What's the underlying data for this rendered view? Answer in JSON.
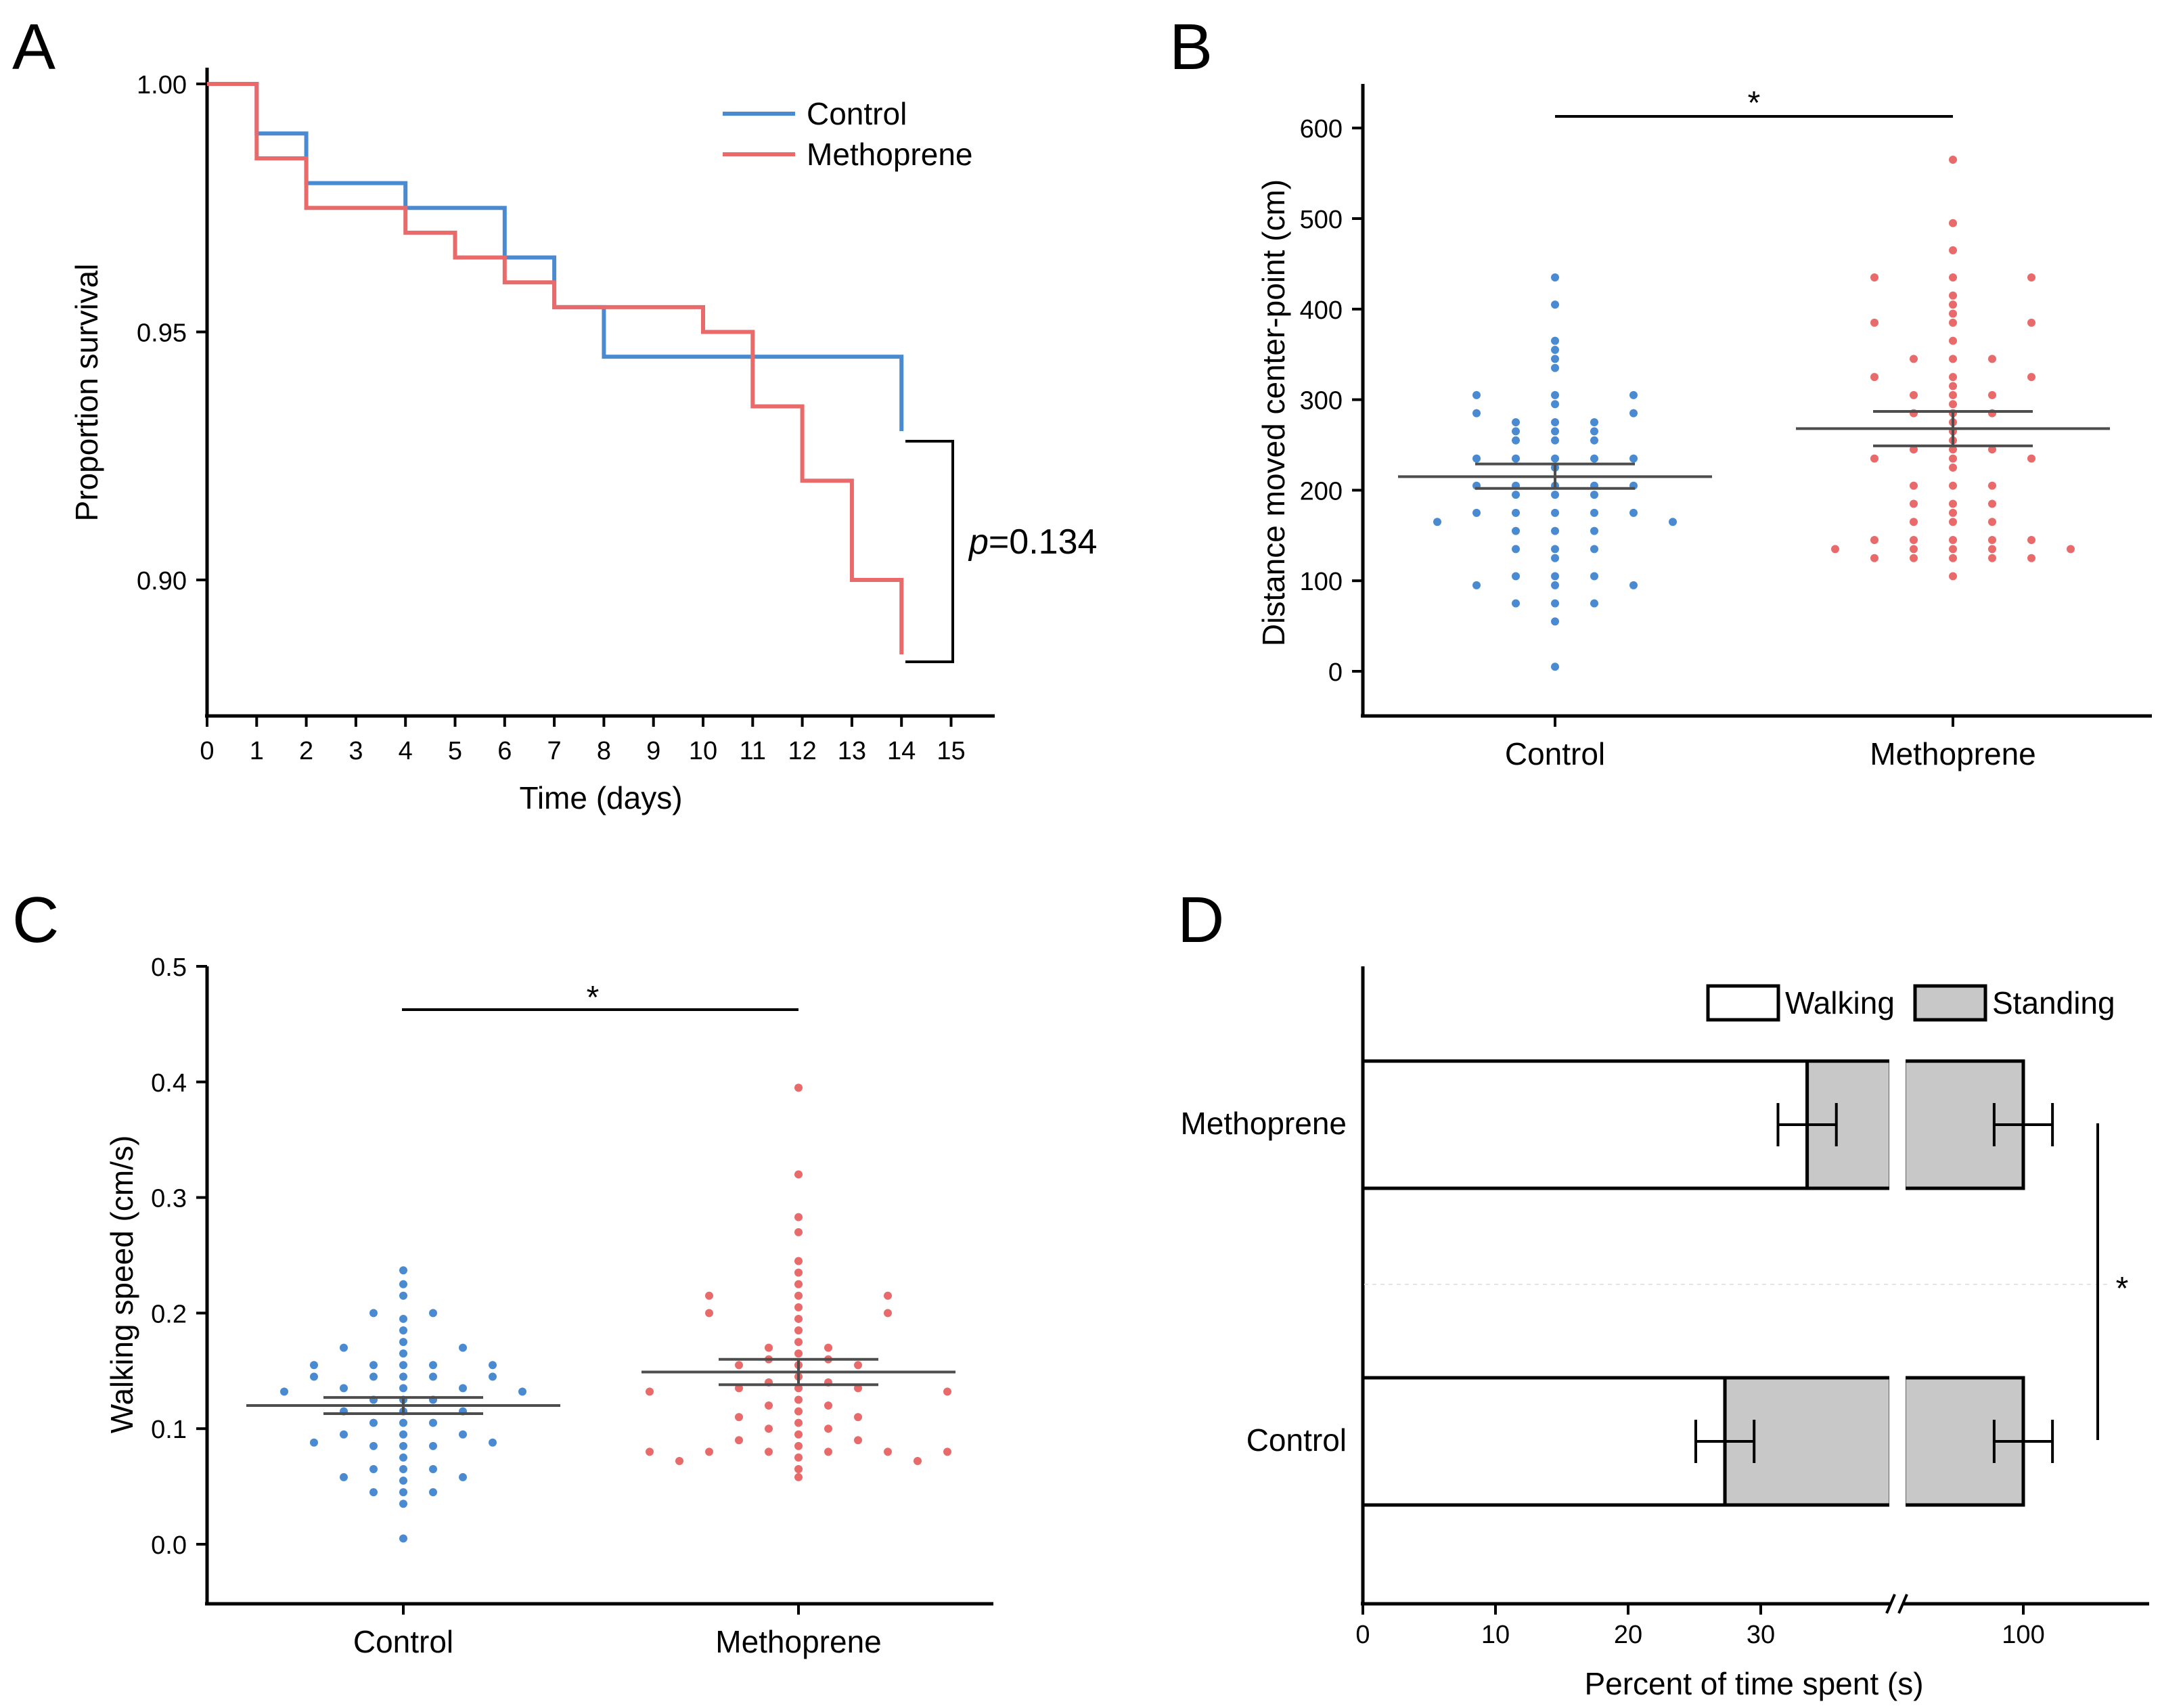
{
  "panels": {
    "a": "A",
    "b": "B",
    "c": "C",
    "d": "D"
  },
  "colors": {
    "control": "#4a8ad0",
    "methoprene": "#e86a6a",
    "bar_fill": "#c8c8c8",
    "error": "#4d4d4d"
  },
  "chart_data": [
    {
      "type": "line",
      "panel": "A",
      "title": "",
      "xlabel": "Time (days)",
      "ylabel": "Proportion survival",
      "xlim": [
        0,
        15
      ],
      "ylim": [
        0.875,
        1.0
      ],
      "x_ticks": [
        "0",
        "1",
        "2",
        "3",
        "4",
        "5",
        "6",
        "7",
        "8",
        "9",
        "10",
        "11",
        "12",
        "13",
        "14",
        "15"
      ],
      "y_ticks": [
        "0.90",
        "0.95",
        "1.00"
      ],
      "step": true,
      "series": [
        {
          "name": "Control",
          "x": [
            0,
            1,
            2,
            4,
            6,
            7,
            8,
            14
          ],
          "y": [
            1.0,
            0.99,
            0.98,
            0.975,
            0.965,
            0.955,
            0.945,
            0.93
          ],
          "end_x": 14
        },
        {
          "name": "Methoprene",
          "x": [
            0,
            1,
            2,
            4,
            5,
            6,
            7,
            10,
            11,
            12,
            13,
            14
          ],
          "y": [
            1.0,
            0.985,
            0.975,
            0.97,
            0.965,
            0.96,
            0.955,
            0.95,
            0.935,
            0.92,
            0.9,
            0.885
          ],
          "end_x": 14
        }
      ],
      "annotation": {
        "prefix": "p",
        "value": "=0.134"
      },
      "legend_position": "top-right"
    },
    {
      "type": "scatter",
      "panel": "B",
      "ylabel": "Distance moved center-point (cm)",
      "xlabel": "",
      "categories": [
        "Control",
        "Methoprene"
      ],
      "ylim": [
        -50,
        650
      ],
      "y_ticks": [
        "0",
        "100",
        "200",
        "300",
        "400",
        "500",
        "600"
      ],
      "significance": "*",
      "series": [
        {
          "name": "Control",
          "mean": 215,
          "sem_low": 202,
          "sem_high": 229,
          "points": [
            [
              0,
              5
            ],
            [
              0,
              55
            ],
            [
              0,
              75
            ],
            [
              0,
              95
            ],
            [
              0,
              105
            ],
            [
              0,
              125
            ],
            [
              0,
              135
            ],
            [
              0,
              155
            ],
            [
              0,
              175
            ],
            [
              0,
              195
            ],
            [
              0,
              205
            ],
            [
              0,
              225
            ],
            [
              0,
              235
            ],
            [
              0,
              255
            ],
            [
              0,
              265
            ],
            [
              0,
              275
            ],
            [
              0,
              295
            ],
            [
              0,
              305
            ],
            [
              0,
              335
            ],
            [
              0,
              345
            ],
            [
              0,
              355
            ],
            [
              0,
              365
            ],
            [
              0,
              405
            ],
            [
              0,
              435
            ],
            [
              -1,
              75
            ],
            [
              1,
              75
            ],
            [
              -1,
              105
            ],
            [
              1,
              105
            ],
            [
              -1,
              135
            ],
            [
              1,
              135
            ],
            [
              -1,
              155
            ],
            [
              1,
              155
            ],
            [
              -1,
              175
            ],
            [
              1,
              175
            ],
            [
              -1,
              195
            ],
            [
              1,
              195
            ],
            [
              -1,
              205
            ],
            [
              1,
              205
            ],
            [
              -1,
              235
            ],
            [
              1,
              235
            ],
            [
              -1,
              255
            ],
            [
              1,
              255
            ],
            [
              -1,
              265
            ],
            [
              1,
              265
            ],
            [
              -1,
              275
            ],
            [
              1,
              275
            ],
            [
              -2,
              95
            ],
            [
              2,
              95
            ],
            [
              -2,
              175
            ],
            [
              2,
              175
            ],
            [
              -2,
              205
            ],
            [
              2,
              205
            ],
            [
              -2,
              235
            ],
            [
              2,
              235
            ],
            [
              -2,
              285
            ],
            [
              2,
              285
            ],
            [
              -2,
              305
            ],
            [
              2,
              305
            ],
            [
              -3,
              165
            ],
            [
              3,
              165
            ]
          ]
        },
        {
          "name": "Methoprene",
          "mean": 268,
          "sem_low": 249,
          "sem_high": 287,
          "points": [
            [
              0,
              105
            ],
            [
              0,
              125
            ],
            [
              0,
              135
            ],
            [
              0,
              145
            ],
            [
              0,
              165
            ],
            [
              0,
              175
            ],
            [
              0,
              185
            ],
            [
              0,
              205
            ],
            [
              0,
              225
            ],
            [
              0,
              235
            ],
            [
              0,
              245
            ],
            [
              0,
              255
            ],
            [
              0,
              265
            ],
            [
              0,
              275
            ],
            [
              0,
              285
            ],
            [
              0,
              295
            ],
            [
              0,
              305
            ],
            [
              0,
              315
            ],
            [
              0,
              325
            ],
            [
              0,
              345
            ],
            [
              0,
              365
            ],
            [
              0,
              385
            ],
            [
              0,
              395
            ],
            [
              0,
              405
            ],
            [
              0,
              415
            ],
            [
              0,
              435
            ],
            [
              0,
              465
            ],
            [
              0,
              495
            ],
            [
              0,
              565
            ],
            [
              -1,
              125
            ],
            [
              1,
              125
            ],
            [
              -1,
              135
            ],
            [
              1,
              135
            ],
            [
              -1,
              145
            ],
            [
              1,
              145
            ],
            [
              -1,
              165
            ],
            [
              1,
              165
            ],
            [
              -1,
              185
            ],
            [
              1,
              185
            ],
            [
              -1,
              205
            ],
            [
              1,
              205
            ],
            [
              -1,
              245
            ],
            [
              1,
              245
            ],
            [
              -1,
              285
            ],
            [
              1,
              285
            ],
            [
              -1,
              305
            ],
            [
              1,
              305
            ],
            [
              -1,
              345
            ],
            [
              1,
              345
            ],
            [
              -2,
              125
            ],
            [
              2,
              125
            ],
            [
              -2,
              145
            ],
            [
              2,
              145
            ],
            [
              -2,
              235
            ],
            [
              2,
              235
            ],
            [
              -2,
              325
            ],
            [
              2,
              325
            ],
            [
              -2,
              385
            ],
            [
              2,
              385
            ],
            [
              -2,
              435
            ],
            [
              2,
              435
            ],
            [
              -3,
              135
            ],
            [
              3,
              135
            ]
          ]
        }
      ]
    },
    {
      "type": "scatter",
      "panel": "C",
      "ylabel": "Walking speed (cm/s)",
      "xlabel": "",
      "categories": [
        "Control",
        "Methoprene"
      ],
      "ylim": [
        -0.05,
        0.5
      ],
      "y_ticks": [
        "0.0",
        "0.1",
        "0.2",
        "0.3",
        "0.4",
        "0.5"
      ],
      "significance": "*",
      "series": [
        {
          "name": "Control",
          "mean": 0.12,
          "sem_low": 0.113,
          "sem_high": 0.127,
          "points": [
            [
              0,
              0.005
            ],
            [
              0,
              0.035
            ],
            [
              0,
              0.045
            ],
            [
              0,
              0.055
            ],
            [
              0,
              0.065
            ],
            [
              0,
              0.075
            ],
            [
              0,
              0.085
            ],
            [
              0,
              0.095
            ],
            [
              0,
              0.105
            ],
            [
              0,
              0.115
            ],
            [
              0,
              0.125
            ],
            [
              0,
              0.135
            ],
            [
              0,
              0.145
            ],
            [
              0,
              0.155
            ],
            [
              0,
              0.165
            ],
            [
              0,
              0.175
            ],
            [
              0,
              0.185
            ],
            [
              0,
              0.195
            ],
            [
              0,
              0.215
            ],
            [
              0,
              0.225
            ],
            [
              0,
              0.237
            ],
            [
              -1,
              0.045
            ],
            [
              1,
              0.045
            ],
            [
              -1,
              0.065
            ],
            [
              1,
              0.065
            ],
            [
              -1,
              0.085
            ],
            [
              1,
              0.085
            ],
            [
              -1,
              0.105
            ],
            [
              1,
              0.105
            ],
            [
              -1,
              0.125
            ],
            [
              1,
              0.125
            ],
            [
              -1,
              0.145
            ],
            [
              1,
              0.145
            ],
            [
              -1,
              0.155
            ],
            [
              1,
              0.155
            ],
            [
              -1,
              0.2
            ],
            [
              1,
              0.2
            ],
            [
              -2,
              0.058
            ],
            [
              2,
              0.058
            ],
            [
              -2,
              0.095
            ],
            [
              2,
              0.095
            ],
            [
              -2,
              0.115
            ],
            [
              2,
              0.115
            ],
            [
              -2,
              0.135
            ],
            [
              2,
              0.135
            ],
            [
              -2,
              0.17
            ],
            [
              2,
              0.17
            ],
            [
              -3,
              0.088
            ],
            [
              3,
              0.088
            ],
            [
              -3,
              0.145
            ],
            [
              3,
              0.145
            ],
            [
              -3,
              0.155
            ],
            [
              3,
              0.155
            ],
            [
              -4,
              0.132
            ],
            [
              4,
              0.132
            ]
          ]
        },
        {
          "name": "Methoprene",
          "mean": 0.149,
          "sem_low": 0.138,
          "sem_high": 0.16,
          "points": [
            [
              0,
              0.058
            ],
            [
              0,
              0.065
            ],
            [
              0,
              0.075
            ],
            [
              0,
              0.085
            ],
            [
              0,
              0.095
            ],
            [
              0,
              0.105
            ],
            [
              0,
              0.115
            ],
            [
              0,
              0.125
            ],
            [
              0,
              0.135
            ],
            [
              0,
              0.145
            ],
            [
              0,
              0.155
            ],
            [
              0,
              0.165
            ],
            [
              0,
              0.175
            ],
            [
              0,
              0.185
            ],
            [
              0,
              0.195
            ],
            [
              0,
              0.205
            ],
            [
              0,
              0.215
            ],
            [
              0,
              0.225
            ],
            [
              0,
              0.235
            ],
            [
              0,
              0.245
            ],
            [
              0,
              0.27
            ],
            [
              0,
              0.283
            ],
            [
              0,
              0.32
            ],
            [
              0,
              0.395
            ],
            [
              -1,
              0.08
            ],
            [
              1,
              0.08
            ],
            [
              -1,
              0.1
            ],
            [
              1,
              0.1
            ],
            [
              -1,
              0.12
            ],
            [
              1,
              0.12
            ],
            [
              -1,
              0.14
            ],
            [
              1,
              0.14
            ],
            [
              -1,
              0.16
            ],
            [
              1,
              0.16
            ],
            [
              -1,
              0.17
            ],
            [
              1,
              0.17
            ],
            [
              -2,
              0.09
            ],
            [
              2,
              0.09
            ],
            [
              -2,
              0.11
            ],
            [
              2,
              0.11
            ],
            [
              -2,
              0.135
            ],
            [
              2,
              0.135
            ],
            [
              -2,
              0.155
            ],
            [
              2,
              0.155
            ],
            [
              -3,
              0.08
            ],
            [
              3,
              0.08
            ],
            [
              -3,
              0.2
            ],
            [
              3,
              0.2
            ],
            [
              -3,
              0.215
            ],
            [
              3,
              0.215
            ],
            [
              -4,
              0.072
            ],
            [
              4,
              0.072
            ],
            [
              -5,
              0.08
            ],
            [
              5,
              0.08
            ],
            [
              -5,
              0.132
            ],
            [
              5,
              0.132
            ]
          ]
        }
      ]
    },
    {
      "type": "bar",
      "panel": "D",
      "orientation": "horizontal",
      "stacked": true,
      "xlabel": "Percent of time spent (s)",
      "x_ticks": [
        "0",
        "10",
        "20",
        "30",
        "100"
      ],
      "axis_break": true,
      "categories": [
        "Methoprene",
        "Control"
      ],
      "series": [
        {
          "name": "Walking",
          "values": [
            33.5,
            27.3
          ],
          "sem": [
            2.2,
            2.2
          ]
        },
        {
          "name": "Standing",
          "values": [
            66.5,
            72.7
          ],
          "sem": [
            2.2,
            2.2
          ]
        }
      ],
      "significance": "*",
      "legend_position": "top-right"
    }
  ]
}
